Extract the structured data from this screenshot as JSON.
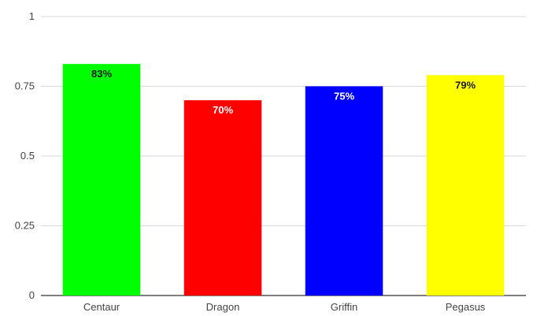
{
  "chart_data": {
    "type": "bar",
    "title": "",
    "xlabel": "",
    "ylabel": "",
    "categories": [
      "Centaur",
      "Dragon",
      "Griffin",
      "Pegasus"
    ],
    "values": [
      0.83,
      0.7,
      0.75,
      0.79
    ],
    "data_labels": [
      "83%",
      "70%",
      "75%",
      "79%"
    ],
    "colors": [
      "#00ff00",
      "#ff0000",
      "#0000ff",
      "#ffff00"
    ],
    "label_colors": [
      "#1a1a1a",
      "#ffffff",
      "#ffffff",
      "#1a1a1a"
    ],
    "ylim": [
      0,
      1
    ],
    "yticks": [
      0,
      0.25,
      0.5,
      0.75,
      1
    ],
    "ytick_labels": [
      "0",
      "0.25",
      "0.5",
      "0.75",
      "1"
    ],
    "grid": true,
    "legend": "none"
  }
}
